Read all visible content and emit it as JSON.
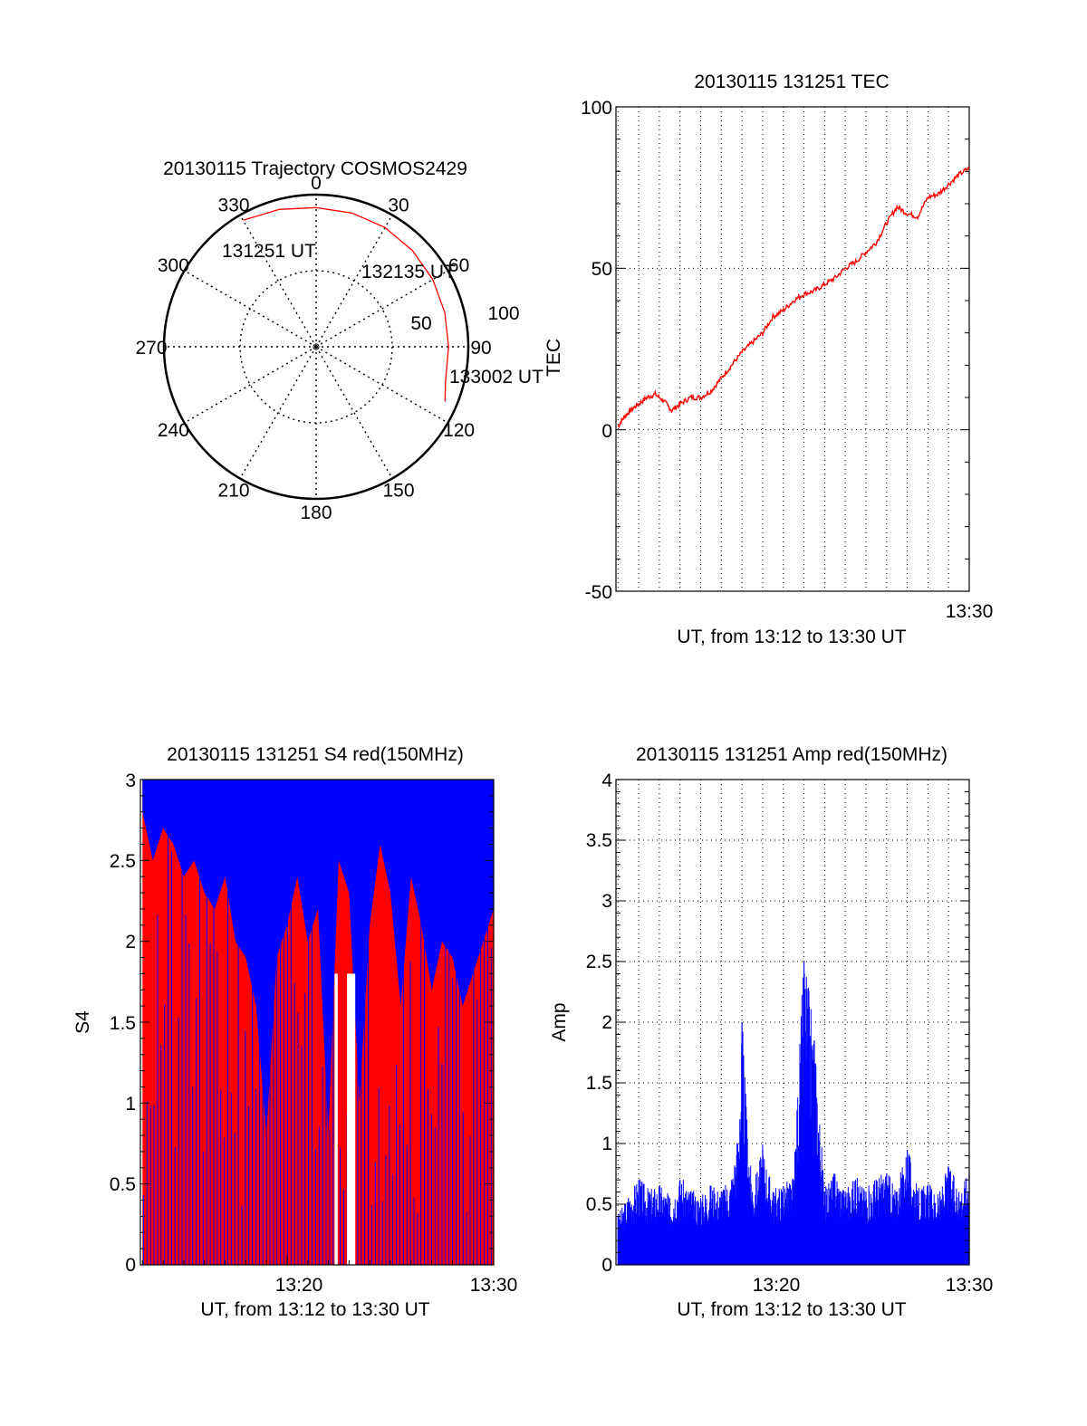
{
  "chart_data": [
    {
      "id": "trajectory",
      "type": "polar",
      "title": "20130115 Trajectory COSMOS2429",
      "angle_labels": [
        "0",
        "30",
        "60",
        "90",
        "120",
        "150",
        "180",
        "210",
        "240",
        "270",
        "300",
        "330"
      ],
      "radial_labels": [
        "50",
        "100"
      ],
      "radial_range": [
        0,
        100
      ],
      "grid": true,
      "track": {
        "color": "#ff0000",
        "azimuth_deg": [
          -30,
          -15,
          0,
          15,
          30,
          45,
          60,
          75,
          90,
          105,
          113
        ],
        "radius": [
          96,
          93.5,
          91.5,
          91,
          90.5,
          89.5,
          88.5,
          87.5,
          87,
          88,
          92
        ]
      },
      "annotations": [
        {
          "text": "131251 UT",
          "az": -30,
          "r": 96
        },
        {
          "text": "132135 UT",
          "az": 45,
          "r": 89.5
        },
        {
          "text": "133002 UT",
          "az": 113,
          "r": 92
        }
      ]
    },
    {
      "id": "tec",
      "type": "line",
      "title": "20130115 131251 TEC",
      "xlabel": "UT, from 13:12 to 13:30 UT",
      "ylabel": "TEC",
      "ylim": [
        -50,
        100
      ],
      "yticks": [
        "100",
        "50",
        "0",
        "-50"
      ],
      "xlabel_tick": "13:30",
      "grid": true,
      "series": [
        {
          "color": "#ff0000",
          "x": [
            13.0,
            13.3,
            13.6,
            14.0,
            14.4,
            14.8,
            15.2,
            15.6,
            16.0,
            16.5,
            17.0,
            17.5,
            18.0,
            18.5,
            19.0,
            19.5,
            20.0,
            20.5,
            21.0,
            21.5,
            22.0,
            22.5,
            23.0,
            23.5,
            24.0,
            24.5,
            25.0,
            25.5,
            26.0,
            26.5,
            27.0,
            27.5,
            28.0,
            28.5,
            29.0,
            29.5,
            30.0
          ],
          "y": [
            1,
            4,
            6,
            8,
            10,
            11,
            9,
            6,
            8,
            10,
            10,
            12,
            16,
            20,
            24,
            27,
            30,
            35,
            37,
            40,
            42,
            43,
            45,
            47,
            50,
            52,
            55,
            58,
            64,
            69,
            67,
            66,
            72,
            73,
            76,
            79,
            81
          ]
        }
      ]
    },
    {
      "id": "s4",
      "type": "area",
      "title": "20130115 131251 S4 red(150MHz)",
      "xlabel": "UT, from 13:12 to 13:30 UT",
      "ylabel": "S4",
      "ylim": [
        0,
        3
      ],
      "yticks": [
        "0",
        "0.5",
        "1",
        "1.5",
        "2",
        "2.5",
        "3"
      ],
      "xtick_labels": [
        {
          "x": 20,
          "label": "13:20"
        },
        {
          "x": 30,
          "label": "13:30"
        }
      ],
      "series": [
        {
          "name": "red",
          "color": "#ff0000",
          "fill_to": 3
        },
        {
          "name": "blue",
          "color": "#0000ff",
          "x": [
            13.0,
            13.5,
            14.0,
            14.5,
            15.0,
            15.5,
            16.0,
            16.5,
            17.0,
            17.5,
            18.0,
            18.5,
            19.0,
            19.5,
            20.0,
            20.5,
            21.0,
            21.5,
            22.0,
            22.5,
            23.0,
            23.5,
            24.0,
            24.5,
            25.0,
            25.5,
            26.0,
            26.5,
            27.0,
            27.5,
            28.0,
            28.5,
            29.0,
            29.5,
            30.0
          ],
          "y": [
            2.8,
            2.5,
            2.7,
            2.6,
            2.4,
            2.5,
            2.3,
            2.2,
            2.4,
            2.0,
            1.9,
            1.6,
            0.8,
            1.9,
            2.1,
            2.4,
            2.0,
            2.2,
            0.8,
            2.5,
            2.3,
            1.0,
            2.1,
            2.6,
            2.3,
            1.6,
            2.4,
            2.1,
            1.7,
            2.0,
            1.9,
            1.6,
            1.8,
            2.0,
            2.2
          ]
        }
      ]
    },
    {
      "id": "amp",
      "type": "bar",
      "title": "20130115 131251 Amp red(150MHz)",
      "xlabel": "UT, from 13:12 to 13:30 UT",
      "ylabel": "Amp",
      "ylim": [
        0,
        4
      ],
      "yticks": [
        "0",
        "0.5",
        "1",
        "1.5",
        "2",
        "2.5",
        "3",
        "3.5",
        "4"
      ],
      "xtick_labels": [
        {
          "x": 20,
          "label": "13:20"
        },
        {
          "x": 30,
          "label": "13:30"
        }
      ],
      "grid": true,
      "series": [
        {
          "color": "#0000ff",
          "x": [
            13.0,
            13.5,
            14.0,
            14.5,
            15.0,
            15.5,
            16.0,
            16.5,
            17.0,
            17.5,
            18.0,
            18.5,
            18.9,
            19.0,
            19.2,
            19.5,
            20.0,
            20.5,
            21.0,
            21.5,
            22.0,
            22.5,
            23.0,
            23.5,
            24.0,
            24.5,
            25.0,
            25.5,
            26.0,
            26.5,
            27.0,
            27.5,
            28.0,
            28.5,
            29.0,
            29.5,
            30.0
          ],
          "y": [
            0.4,
            0.55,
            0.7,
            0.6,
            0.65,
            0.55,
            0.7,
            0.6,
            0.55,
            0.65,
            0.6,
            0.7,
            1.2,
            2.0,
            1.3,
            0.6,
            0.95,
            0.6,
            0.65,
            0.7,
            2.5,
            1.85,
            0.6,
            0.75,
            0.6,
            0.7,
            0.6,
            0.7,
            0.75,
            0.6,
            0.95,
            0.6,
            0.65,
            0.55,
            0.8,
            0.6,
            0.75
          ]
        }
      ]
    }
  ]
}
